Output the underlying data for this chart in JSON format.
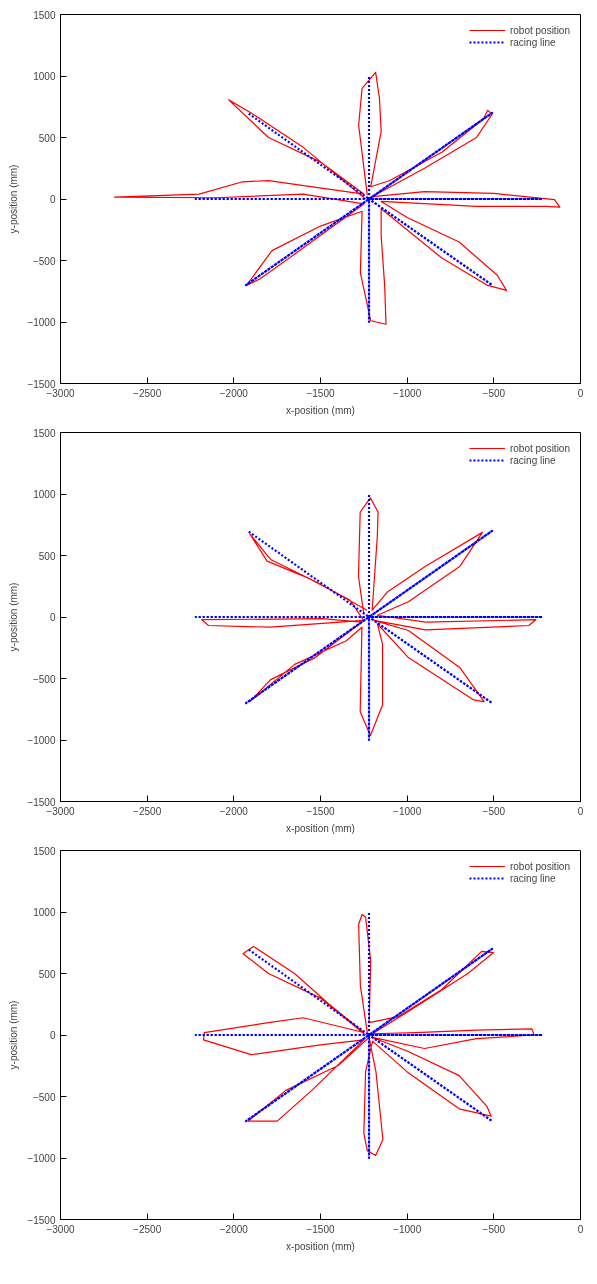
{
  "chart_data": [
    {
      "type": "line",
      "xlabel": "x-position (mm)",
      "ylabel": "y-position (mm)",
      "xlim": [
        -3000,
        0
      ],
      "ylim": [
        -1500,
        1500
      ],
      "xticks": [
        -3000,
        -2500,
        -2000,
        -1500,
        -1000,
        -500,
        0
      ],
      "yticks": [
        -1500,
        -1000,
        -500,
        0,
        500,
        1000,
        1500
      ],
      "legend": "top right",
      "series": [
        {
          "name": "robot position",
          "color": "#ff0000",
          "line_style": "solid",
          "x": [
            -1230,
            -1280,
            -1260,
            -1182,
            -1160,
            -1150,
            -1210,
            -1100,
            -800,
            -560,
            -536,
            -510,
            -600,
            -900,
            -1200,
            -900,
            -500,
            -150,
            -119,
            -200,
            -600,
            -1150,
            -1000,
            -700,
            -480,
            -427,
            -540,
            -800,
            -1150,
            -1150,
            -1130,
            -1122,
            -1210,
            -1270,
            -1260,
            -1500,
            -1780,
            -1927,
            -1850,
            -1650,
            -1250,
            -1600,
            -2100,
            -2688,
            -2200,
            -1950,
            -1800,
            -1250,
            -1500,
            -1800,
            -2030,
            -1900,
            -1600,
            -1240
          ],
          "values": [
            30,
            600,
            900,
            1030,
            820,
            550,
            100,
            150,
            380,
            650,
            721,
            690,
            500,
            250,
            20,
            60,
            45,
            -5,
            -66,
            -60,
            -60,
            -20,
            -150,
            -350,
            -620,
            -743,
            -700,
            -480,
            -80,
            -300,
            -700,
            -1018,
            -990,
            -600,
            -100,
            -220,
            -420,
            -702,
            -650,
            -450,
            -40,
            40,
            10,
            15,
            40,
            140,
            150,
            40,
            300,
            500,
            806,
            700,
            420,
            0
          ]
        },
        {
          "name": "racing line",
          "color": "#0000ff",
          "line_style": "dotted",
          "x": [
            -1220,
            -1220,
            -1220,
            -510,
            -1220,
            -220,
            -1220,
            -510,
            -1220,
            -1220,
            -1220,
            -1930,
            -1220,
            -2220,
            -1220,
            -1920
          ],
          "values": [
            0,
            1000,
            0,
            700,
            0,
            0,
            0,
            -700,
            0,
            -1000,
            0,
            -700,
            0,
            0,
            0,
            700
          ]
        }
      ]
    },
    {
      "type": "line",
      "xlabel": "x-position (mm)",
      "ylabel": "y-position (mm)",
      "xlim": [
        -3000,
        0
      ],
      "ylim": [
        -1500,
        1500
      ],
      "xticks": [
        -3000,
        -2500,
        -2000,
        -1500,
        -1000,
        -500,
        0
      ],
      "yticks": [
        -1500,
        -1000,
        -500,
        0,
        500,
        1000,
        1500
      ],
      "legend": "top right",
      "series": [
        {
          "name": "robot position",
          "color": "#ff0000",
          "line_style": "solid",
          "x": [
            -1250,
            -1281,
            -1271,
            -1212,
            -1168,
            -1172,
            -1202,
            -1112,
            -894,
            -566,
            -695,
            -993,
            -1172,
            -894,
            -258,
            -298,
            -894,
            -1192,
            -993,
            -695,
            -556,
            -616,
            -993,
            -1172,
            -1142,
            -1142,
            -1212,
            -1271,
            -1261,
            -1351,
            -1649,
            -1907,
            -1788,
            -1530,
            -1261,
            -1490,
            -2185,
            -2146,
            -1788,
            -1251,
            -1331,
            -1570,
            -1808,
            -1907,
            -1788,
            -1510,
            -1232
          ],
          "values": [
            20,
            330,
            853,
            968,
            853,
            660,
            55,
            206,
            413,
            688,
            413,
            124,
            14,
            -41,
            -22,
            -69,
            -105,
            -28,
            -110,
            -413,
            -688,
            -674,
            -330,
            -55,
            -220,
            -715,
            -963,
            -770,
            -83,
            -193,
            -385,
            -688,
            -509,
            -330,
            -41,
            -14,
            -22,
            -69,
            -83,
            -28,
            138,
            316,
            454,
            674,
            468,
            275,
            55
          ]
        },
        {
          "name": "racing line",
          "color": "#0000ff",
          "line_style": "dotted",
          "x": [
            -1220,
            -1220,
            -1220,
            -510,
            -1220,
            -220,
            -1220,
            -510,
            -1220,
            -1220,
            -1220,
            -1930,
            -1220,
            -2220,
            -1220,
            -1920
          ],
          "values": [
            0,
            1000,
            0,
            700,
            0,
            0,
            0,
            -700,
            0,
            -1000,
            0,
            -700,
            0,
            0,
            0,
            700
          ]
        }
      ]
    },
    {
      "type": "line",
      "xlabel": "x-position (mm)",
      "ylabel": "y-position (mm)",
      "xlim": [
        -3000,
        0
      ],
      "ylim": [
        -1500,
        1500
      ],
      "xticks": [
        -3000,
        -2500,
        -2000,
        -1500,
        -1000,
        -500,
        0
      ],
      "yticks": [
        -1500,
        -1000,
        -500,
        0,
        500,
        1000,
        1500
      ],
      "legend": "top right",
      "series": [
        {
          "name": "robot position",
          "color": "#ff0000",
          "line_style": "solid",
          "x": [
            -1230,
            -1270,
            -1280,
            -1260,
            -1240,
            -1210,
            -1220,
            -1050,
            -800,
            -570,
            -501,
            -650,
            -950,
            -1200,
            -950,
            -600,
            -280,
            -268,
            -600,
            -900,
            -1200,
            -1000,
            -700,
            -540,
            -516,
            -700,
            -1000,
            -1200,
            -1240,
            -1250,
            -1230,
            -1182,
            -1140,
            -1180,
            -1220,
            -1400,
            -1700,
            -1917,
            -1750,
            -1550,
            -1250,
            -1500,
            -1900,
            -2175,
            -2170,
            -1800,
            -1600,
            -1250,
            -1450,
            -1650,
            -1887,
            -1947,
            -1800,
            -1500,
            -1240
          ],
          "values": [
            20,
            400,
            900,
            980,
            960,
            600,
            100,
            150,
            370,
            680,
            670,
            500,
            230,
            10,
            20,
            40,
            50,
            0,
            -30,
            -110,
            -20,
            -130,
            -330,
            -580,
            -660,
            -600,
            -300,
            -50,
            -300,
            -800,
            -940,
            -980,
            -850,
            -300,
            -20,
            -250,
            -450,
            -700,
            -700,
            -450,
            -40,
            -80,
            -160,
            -40,
            20,
            100,
            140,
            20,
            250,
            500,
            720,
            660,
            500,
            300,
            0
          ]
        },
        {
          "name": "racing line",
          "color": "#0000ff",
          "line_style": "dotted",
          "x": [
            -1220,
            -1220,
            -1220,
            -510,
            -1220,
            -220,
            -1220,
            -510,
            -1220,
            -1220,
            -1220,
            -1930,
            -1220,
            -2220,
            -1220,
            -1920
          ],
          "values": [
            0,
            1000,
            0,
            700,
            0,
            0,
            0,
            -700,
            0,
            -1000,
            0,
            -700,
            0,
            0,
            0,
            700
          ]
        }
      ]
    }
  ]
}
